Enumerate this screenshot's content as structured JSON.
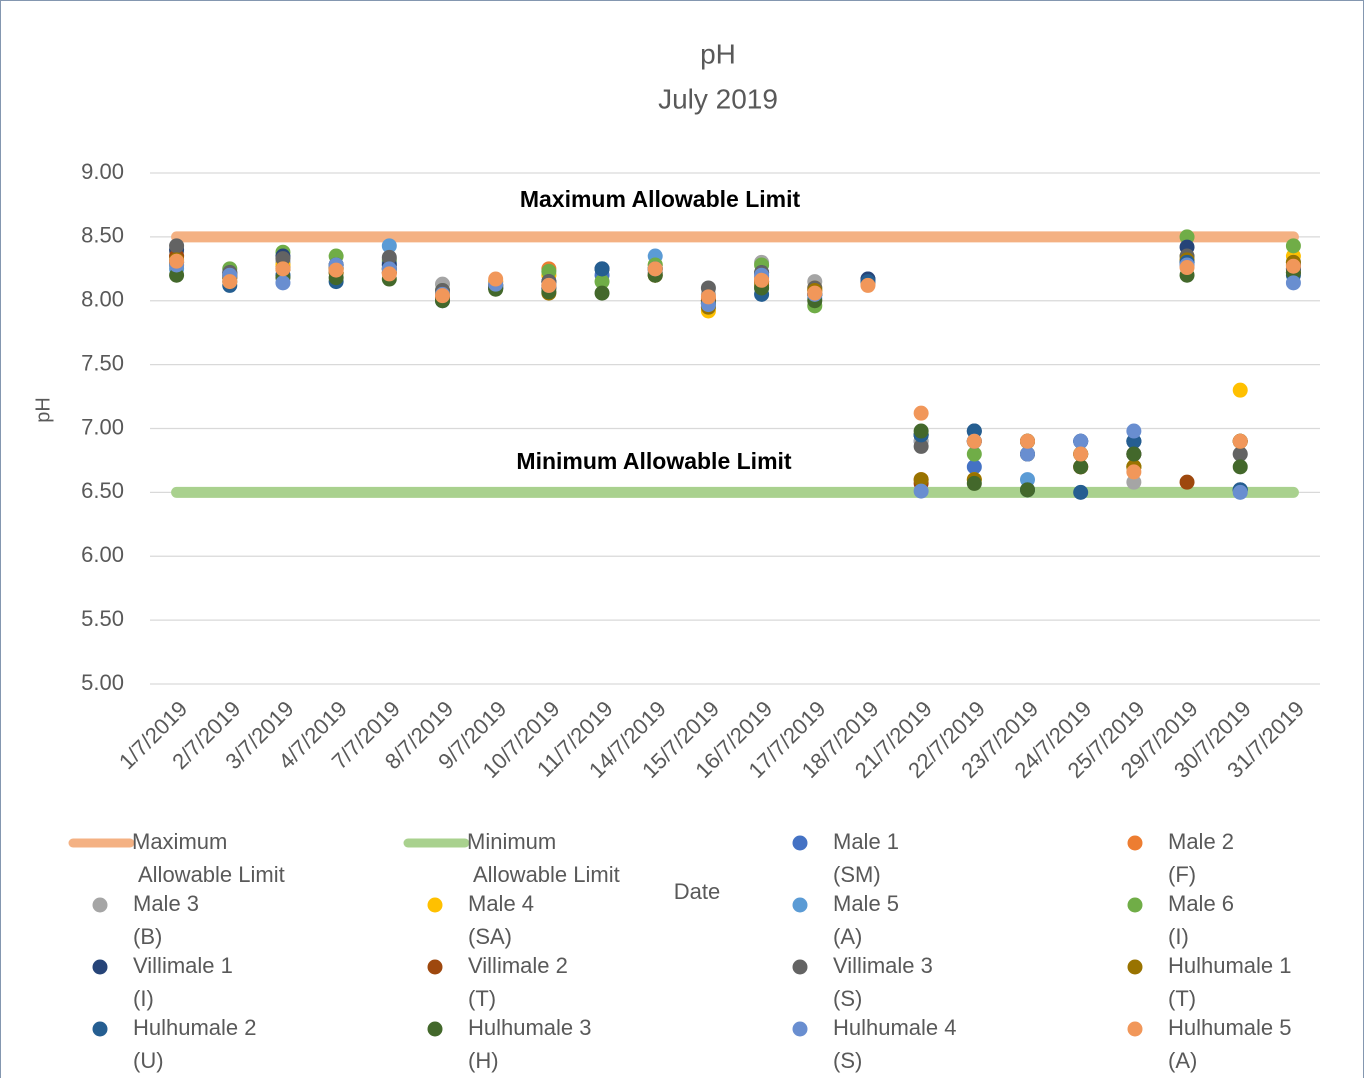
{
  "chart_data": {
    "type": "scatter",
    "title": "pH",
    "subtitle": "July 2019",
    "y_label": "pH",
    "x_label": "Date",
    "annotations": [
      "Maximum Allowable Limit",
      "Minimum Allowable Limit"
    ],
    "categories": [
      "1/7/2019",
      "2/7/2019",
      "3/7/2019",
      "4/7/2019",
      "7/7/2019",
      "8/7/2019",
      "9/7/2019",
      "10/7/2019",
      "11/7/2019",
      "14/7/2019",
      "15/7/2019",
      "16/7/2019",
      "17/7/2019",
      "18/7/2019",
      "21/7/2019",
      "22/7/2019",
      "23/7/2019",
      "24/7/2019",
      "25/7/2019",
      "29/7/2019",
      "30/7/2019",
      "31/7/2019"
    ],
    "ylim": [
      5,
      9
    ],
    "yticks": [
      {
        "value": 5,
        "label": "5.00"
      },
      {
        "value": 5.5,
        "label": "5.50"
      },
      {
        "value": 6,
        "label": "6.00"
      },
      {
        "value": 6.5,
        "label": "6.50"
      },
      {
        "value": 7,
        "label": "7.00"
      },
      {
        "value": 7.5,
        "label": "7.50"
      },
      {
        "value": 8,
        "label": "8.00"
      },
      {
        "value": 8.5,
        "label": "8.50"
      },
      {
        "value": 9,
        "label": "9.00"
      }
    ],
    "grid": true,
    "series": [
      {
        "name": "Maximum Allowable Limit",
        "kind": "line",
        "color": "#f4b183",
        "values": [
          8.5,
          8.5,
          8.5,
          8.5,
          8.5,
          8.5,
          8.5,
          8.5,
          8.5,
          8.5,
          8.5,
          8.5,
          8.5,
          8.5,
          8.5,
          8.5,
          8.5,
          8.5,
          8.5,
          8.5,
          8.5,
          8.5
        ]
      },
      {
        "name": "Minimum Allowable Limit",
        "kind": "line",
        "color": "#a9d18e",
        "values": [
          6.5,
          6.5,
          6.5,
          6.5,
          6.5,
          6.5,
          6.5,
          6.5,
          6.5,
          6.5,
          6.5,
          6.5,
          6.5,
          6.5,
          6.5,
          6.5,
          6.5,
          6.5,
          6.5,
          6.5,
          6.5,
          6.5
        ]
      },
      {
        "name": "Male 1 (SM)",
        "color": "#4472c4",
        "values": [
          8.3,
          8.2,
          8.3,
          8.25,
          8.3,
          8.05,
          8.12,
          8.15,
          8.2,
          8.25,
          7.98,
          8.15,
          8.05,
          8.17,
          6.9,
          6.7,
          6.8,
          6.9,
          6.8,
          8.3,
          6.52,
          8.25
        ]
      },
      {
        "name": "Male 2 (F)",
        "color": "#ed7d31",
        "values": [
          8.35,
          8.18,
          8.28,
          8.22,
          8.22,
          8.05,
          8.15,
          8.25,
          null,
          8.25,
          8.02,
          8.18,
          8.08,
          8.13,
          6.6,
          6.9,
          6.9,
          6.7,
          6.7,
          8.28,
          6.9,
          8.3
        ]
      },
      {
        "name": "Male 3 (B)",
        "color": "#a5a5a5",
        "values": [
          8.38,
          8.22,
          8.3,
          8.28,
          8.28,
          8.13,
          8.12,
          8.2,
          null,
          8.25,
          8.05,
          8.3,
          8.15,
          null,
          6.9,
          6.9,
          6.9,
          6.8,
          6.58,
          8.3,
          6.8,
          8.3
        ]
      },
      {
        "name": "Male 4 (SA)",
        "color": "#ffc000",
        "values": [
          8.3,
          8.2,
          8.28,
          8.25,
          8.25,
          8.05,
          8.15,
          8.2,
          null,
          8.28,
          7.92,
          8.15,
          8.1,
          null,
          6.95,
          6.6,
          6.8,
          6.8,
          6.7,
          8.35,
          7.3,
          8.35
        ]
      },
      {
        "name": "Male 5 (A)",
        "color": "#5b9bd5",
        "values": [
          8.25,
          8.18,
          8.2,
          8.22,
          8.43,
          8.05,
          8.12,
          8.12,
          null,
          8.35,
          7.95,
          8.1,
          8.02,
          null,
          6.95,
          6.9,
          6.6,
          6.9,
          6.9,
          8.3,
          6.9,
          8.3
        ]
      },
      {
        "name": "Male 6 (I)",
        "color": "#70ad47",
        "values": [
          8.28,
          8.25,
          8.38,
          8.35,
          8.32,
          8.08,
          8.1,
          8.23,
          8.15,
          8.28,
          8.0,
          8.28,
          7.96,
          null,
          6.95,
          6.8,
          6.9,
          6.8,
          6.7,
          8.5,
          6.9,
          8.43
        ]
      },
      {
        "name": "Villimale 1 (I)",
        "color": "#264478",
        "values": [
          8.4,
          8.22,
          8.35,
          8.28,
          8.28,
          8.02,
          8.1,
          8.15,
          8.25,
          8.25,
          8.0,
          8.22,
          8.05,
          8.17,
          6.95,
          6.98,
          6.8,
          6.9,
          6.9,
          8.42,
          6.52,
          8.25
        ]
      },
      {
        "name": "Villimale 2 (T)",
        "color": "#9e480e",
        "values": [
          8.35,
          8.2,
          8.25,
          8.25,
          8.22,
          8.03,
          8.1,
          8.1,
          null,
          8.2,
          8.0,
          8.15,
          8.05,
          null,
          6.57,
          6.9,
          6.9,
          6.7,
          6.8,
          6.58,
          6.9,
          8.22
        ]
      },
      {
        "name": "Villimale 3 (S)",
        "color": "#636363",
        "values": [
          8.43,
          8.22,
          8.33,
          8.28,
          8.34,
          8.08,
          8.12,
          8.15,
          null,
          8.22,
          8.1,
          8.22,
          8.1,
          null,
          6.86,
          6.9,
          6.9,
          6.8,
          6.8,
          8.35,
          6.8,
          8.28
        ]
      },
      {
        "name": "Hulhumale 1 (T)",
        "color": "#997300",
        "values": [
          8.32,
          8.18,
          8.25,
          8.22,
          8.25,
          8.05,
          8.12,
          8.06,
          null,
          8.2,
          7.95,
          8.12,
          8.08,
          null,
          6.6,
          6.6,
          6.9,
          6.8,
          6.7,
          8.32,
          6.9,
          8.3
        ]
      },
      {
        "name": "Hulhumale 2 (U)",
        "color": "#255e91",
        "values": [
          8.3,
          8.12,
          8.2,
          8.15,
          8.25,
          8.0,
          8.1,
          8.1,
          8.25,
          8.25,
          7.98,
          8.05,
          8.05,
          8.15,
          6.95,
          6.98,
          6.52,
          6.5,
          6.9,
          8.3,
          6.52,
          8.2
        ]
      },
      {
        "name": "Hulhumale 3 (H)",
        "color": "#43682b",
        "values": [
          8.2,
          8.15,
          8.18,
          8.18,
          8.17,
          8.0,
          8.09,
          8.07,
          8.06,
          8.2,
          7.98,
          8.1,
          8.0,
          null,
          6.98,
          6.57,
          6.52,
          6.7,
          6.8,
          8.2,
          6.7,
          8.22
        ]
      },
      {
        "name": "Hulhumale 4 (S)",
        "color": "#698ed0",
        "values": [
          8.28,
          8.2,
          8.14,
          8.28,
          8.25,
          8.05,
          8.13,
          8.12,
          null,
          8.25,
          7.97,
          8.2,
          8.05,
          null,
          6.51,
          6.9,
          6.8,
          6.9,
          6.98,
          8.28,
          6.5,
          8.14
        ]
      },
      {
        "name": "Hulhumale 5 (A)",
        "color": "#f1975a",
        "values": [
          8.31,
          8.15,
          8.25,
          8.24,
          8.21,
          8.04,
          8.17,
          8.12,
          null,
          8.25,
          8.03,
          8.16,
          8.06,
          8.12,
          7.12,
          6.9,
          6.9,
          6.8,
          6.66,
          8.26,
          6.9,
          8.27
        ]
      }
    ]
  }
}
